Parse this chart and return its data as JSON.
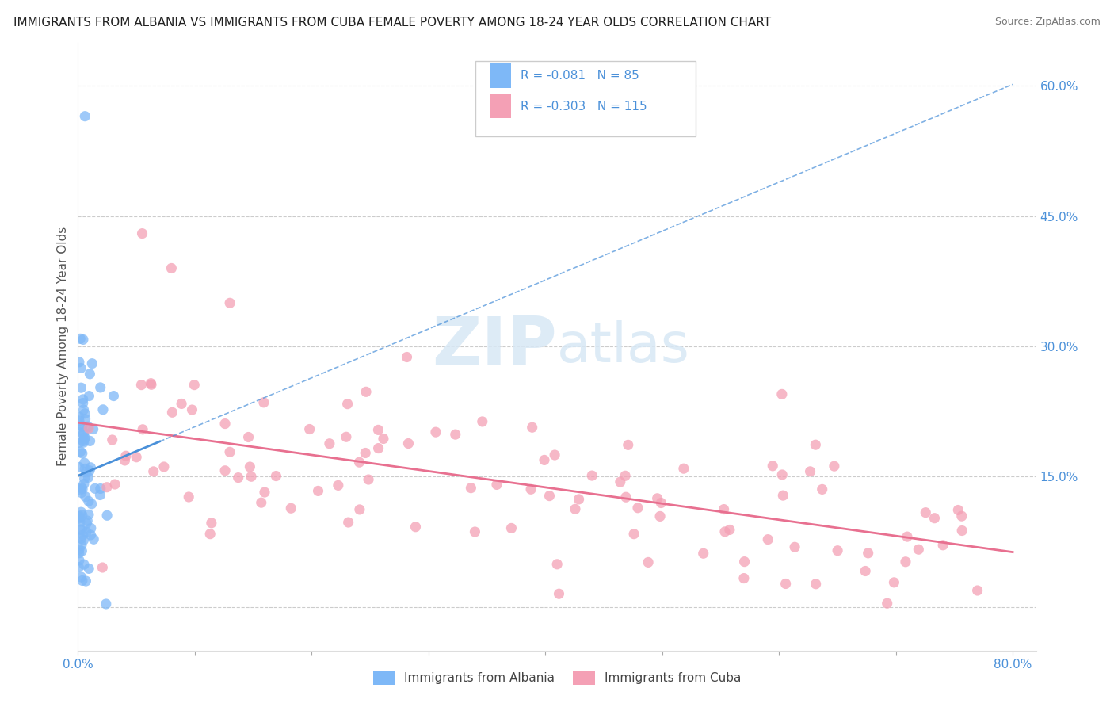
{
  "title": "IMMIGRANTS FROM ALBANIA VS IMMIGRANTS FROM CUBA FEMALE POVERTY AMONG 18-24 YEAR OLDS CORRELATION CHART",
  "source": "Source: ZipAtlas.com",
  "ylabel": "Female Poverty Among 18-24 Year Olds",
  "y_ticks": [
    0.0,
    0.15,
    0.3,
    0.45,
    0.6
  ],
  "y_tick_labels": [
    "",
    "15.0%",
    "30.0%",
    "45.0%",
    "60.0%"
  ],
  "x_tick_positions": [
    0.0,
    0.1,
    0.2,
    0.3,
    0.4,
    0.5,
    0.6,
    0.7,
    0.8
  ],
  "xlim": [
    0.0,
    0.82
  ],
  "ylim": [
    -0.05,
    0.65
  ],
  "albania_color": "#7eb8f7",
  "cuba_color": "#f4a0b5",
  "albania_line_color": "#4a90d9",
  "cuba_line_color": "#e87090",
  "albania_R": -0.081,
  "albania_N": 85,
  "cuba_R": -0.303,
  "cuba_N": 115,
  "watermark_zip": "ZIP",
  "watermark_atlas": "atlas",
  "legend_label_albania": "Immigrants from Albania",
  "legend_label_cuba": "Immigrants from Cuba",
  "title_fontsize": 11,
  "source_fontsize": 9,
  "tick_fontsize": 11,
  "ylabel_fontsize": 11
}
